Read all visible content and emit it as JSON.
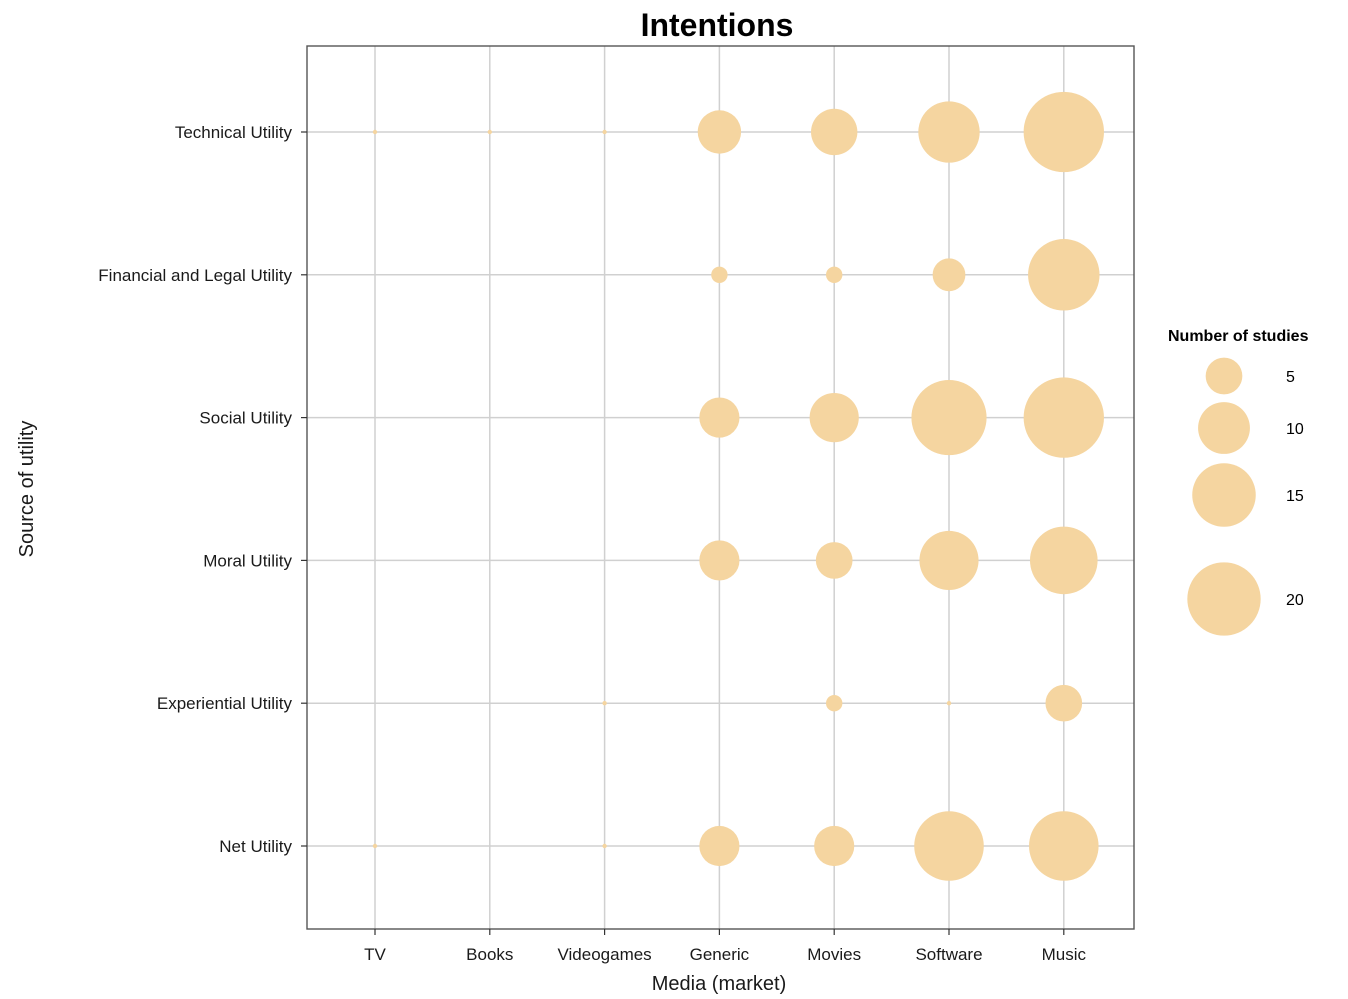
{
  "chart_data": {
    "type": "scatter",
    "title": "Intentions",
    "xlabel": "Media (market)",
    "ylabel": "Source of utility",
    "x_categories": [
      "TV",
      "Books",
      "Videogames",
      "Generic",
      "Movies",
      "Software",
      "Music"
    ],
    "y_categories": [
      "Net Utility",
      "Experiential Utility",
      "Moral Utility",
      "Social Utility",
      "Financial and Legal Utility",
      "Technical Utility"
    ],
    "size_legend": {
      "title": "Number of studies",
      "values": [
        5,
        10,
        15,
        20
      ],
      "labels": [
        "5",
        "10",
        "15",
        "20"
      ]
    },
    "color": "#f5d5a0",
    "grid": true,
    "legend_position": "right",
    "points": [
      {
        "x": "TV",
        "y": "Technical Utility",
        "value": 0
      },
      {
        "x": "Books",
        "y": "Technical Utility",
        "value": 0
      },
      {
        "x": "Videogames",
        "y": "Technical Utility",
        "value": 0
      },
      {
        "x": "Generic",
        "y": "Technical Utility",
        "value": 7
      },
      {
        "x": "Movies",
        "y": "Technical Utility",
        "value": 8
      },
      {
        "x": "Software",
        "y": "Technical Utility",
        "value": 14
      },
      {
        "x": "Music",
        "y": "Technical Utility",
        "value": 24
      },
      {
        "x": "Generic",
        "y": "Financial and Legal Utility",
        "value": 1
      },
      {
        "x": "Movies",
        "y": "Financial and Legal Utility",
        "value": 1
      },
      {
        "x": "Software",
        "y": "Financial and Legal Utility",
        "value": 4
      },
      {
        "x": "Music",
        "y": "Financial and Legal Utility",
        "value": 19
      },
      {
        "x": "Generic",
        "y": "Social Utility",
        "value": 6
      },
      {
        "x": "Movies",
        "y": "Social Utility",
        "value": 9
      },
      {
        "x": "Software",
        "y": "Social Utility",
        "value": 21
      },
      {
        "x": "Music",
        "y": "Social Utility",
        "value": 24
      },
      {
        "x": "Generic",
        "y": "Moral Utility",
        "value": 6
      },
      {
        "x": "Movies",
        "y": "Moral Utility",
        "value": 5
      },
      {
        "x": "Software",
        "y": "Moral Utility",
        "value": 13
      },
      {
        "x": "Music",
        "y": "Moral Utility",
        "value": 17
      },
      {
        "x": "Videogames",
        "y": "Experiential Utility",
        "value": 0
      },
      {
        "x": "Movies",
        "y": "Experiential Utility",
        "value": 1
      },
      {
        "x": "Software",
        "y": "Experiential Utility",
        "value": 0
      },
      {
        "x": "Music",
        "y": "Experiential Utility",
        "value": 5
      },
      {
        "x": "TV",
        "y": "Net Utility",
        "value": 0
      },
      {
        "x": "Videogames",
        "y": "Net Utility",
        "value": 0
      },
      {
        "x": "Generic",
        "y": "Net Utility",
        "value": 6
      },
      {
        "x": "Movies",
        "y": "Net Utility",
        "value": 6
      },
      {
        "x": "Software",
        "y": "Net Utility",
        "value": 18
      },
      {
        "x": "Music",
        "y": "Net Utility",
        "value": 18
      }
    ]
  }
}
